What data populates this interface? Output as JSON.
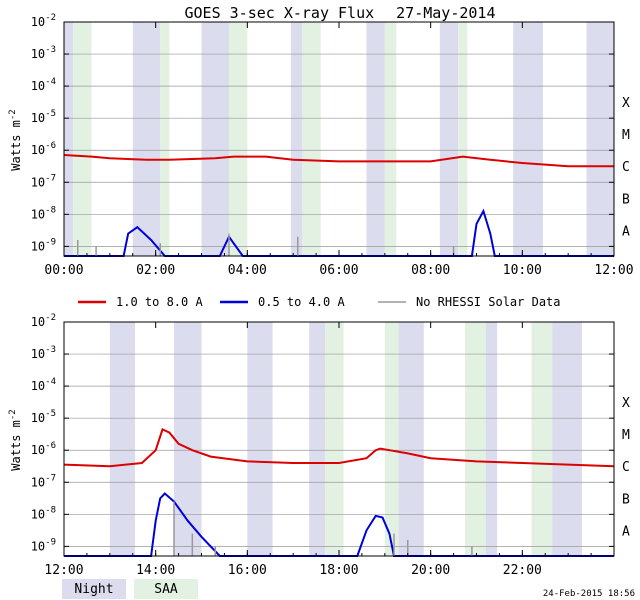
{
  "title": "GOES 3-sec X-ray Flux",
  "date": "27-May-2014",
  "ylabel": "Watts m",
  "ylabel_exp": "-2",
  "y_ticks": [
    {
      "base": "10",
      "exp": "-2"
    },
    {
      "base": "10",
      "exp": "-3"
    },
    {
      "base": "10",
      "exp": "-4"
    },
    {
      "base": "10",
      "exp": "-5"
    },
    {
      "base": "10",
      "exp": "-6"
    },
    {
      "base": "10",
      "exp": "-7"
    },
    {
      "base": "10",
      "exp": "-8"
    },
    {
      "base": "10",
      "exp": "-9"
    }
  ],
  "classes": [
    "X",
    "M",
    "C",
    "B",
    "A"
  ],
  "legend": {
    "long": "1.0 to 8.0 A",
    "short": "0.5 to 4.0 A",
    "norhessi": "No RHESSI Solar Data"
  },
  "key": {
    "night": "Night",
    "saa": "SAA"
  },
  "timestamp": "24-Feb-2015 18:56",
  "colors": {
    "long": "#dd0000",
    "short": "#0000dd",
    "norhessi": "#999999",
    "night": "#dcdcef",
    "saa": "#e3f1e3",
    "grid": "#999999"
  },
  "chart_data": [
    {
      "type": "line",
      "panel": "top",
      "x_range_hours": [
        0,
        12
      ],
      "x_tick_labels": [
        "00:00",
        "02:00",
        "04:00",
        "06:00",
        "08:00",
        "10:00",
        "12:00"
      ],
      "ylim_log10": [
        -9.3,
        -2
      ],
      "night": [
        [
          0.0,
          0.2
        ],
        [
          1.5,
          2.1
        ],
        [
          3.0,
          3.6
        ],
        [
          4.95,
          5.2
        ],
        [
          6.6,
          7.0
        ],
        [
          8.2,
          8.6
        ],
        [
          9.8,
          10.45
        ],
        [
          11.4,
          12.0
        ]
      ],
      "saa": [
        [
          0.2,
          0.6
        ],
        [
          2.1,
          2.3
        ],
        [
          3.6,
          4.0
        ],
        [
          5.2,
          5.6
        ],
        [
          7.0,
          7.25
        ],
        [
          8.6,
          8.8
        ]
      ],
      "series": [
        {
          "name": "1.0 to 8.0 A",
          "values_log10": [
            [
              0,
              -6.15
            ],
            [
              0.6,
              -6.2
            ],
            [
              1.0,
              -6.25
            ],
            [
              1.8,
              -6.3
            ],
            [
              2.3,
              -6.3
            ],
            [
              3.3,
              -6.25
            ],
            [
              3.7,
              -6.2
            ],
            [
              4.4,
              -6.2
            ],
            [
              5.0,
              -6.3
            ],
            [
              6.0,
              -6.35
            ],
            [
              7.0,
              -6.35
            ],
            [
              8.0,
              -6.35
            ],
            [
              8.7,
              -6.2
            ],
            [
              9.3,
              -6.3
            ],
            [
              10.0,
              -6.4
            ],
            [
              11.0,
              -6.5
            ],
            [
              12.0,
              -6.5
            ]
          ]
        },
        {
          "name": "0.5 to 4.0 A",
          "values_log10": [
            [
              0.0,
              -9.3
            ],
            [
              1.3,
              -9.3
            ],
            [
              1.4,
              -8.6
            ],
            [
              1.6,
              -8.4
            ],
            [
              1.9,
              -8.8
            ],
            [
              2.2,
              -9.3
            ],
            [
              3.4,
              -9.3
            ],
            [
              3.6,
              -8.7
            ],
            [
              3.9,
              -9.3
            ],
            [
              8.9,
              -9.3
            ],
            [
              9.0,
              -8.3
            ],
            [
              9.15,
              -7.9
            ],
            [
              9.3,
              -8.6
            ],
            [
              9.4,
              -9.3
            ],
            [
              12.0,
              -9.3
            ]
          ]
        },
        {
          "name": "No RHESSI Solar Data",
          "values_log10": [
            [
              0.3,
              -8.8
            ],
            [
              0.7,
              -9.0
            ],
            [
              2.1,
              -8.9
            ],
            [
              3.6,
              -8.6
            ],
            [
              5.1,
              -8.7
            ],
            [
              8.5,
              -9.0
            ]
          ]
        }
      ]
    },
    {
      "type": "line",
      "panel": "bottom",
      "x_range_hours": [
        12,
        24
      ],
      "x_tick_labels": [
        "12:00",
        "14:00",
        "16:00",
        "18:00",
        "20:00",
        "22:00"
      ],
      "ylim_log10": [
        -9.3,
        -2
      ],
      "night": [
        [
          13.0,
          13.55
        ],
        [
          14.4,
          15.0
        ],
        [
          16.0,
          16.55
        ],
        [
          17.35,
          17.7
        ],
        [
          19.3,
          19.85
        ],
        [
          21.2,
          21.45
        ],
        [
          22.65,
          23.3
        ]
      ],
      "saa": [
        [
          17.7,
          18.1
        ],
        [
          19.0,
          19.3
        ],
        [
          20.75,
          21.2
        ],
        [
          22.2,
          22.65
        ]
      ],
      "series": [
        {
          "name": "1.0 to 8.0 A",
          "values_log10": [
            [
              12.0,
              -6.45
            ],
            [
              13.0,
              -6.5
            ],
            [
              13.7,
              -6.4
            ],
            [
              14.0,
              -6.0
            ],
            [
              14.15,
              -5.35
            ],
            [
              14.3,
              -5.45
            ],
            [
              14.5,
              -5.8
            ],
            [
              14.8,
              -6.0
            ],
            [
              15.2,
              -6.2
            ],
            [
              16.0,
              -6.35
            ],
            [
              17.0,
              -6.4
            ],
            [
              18.0,
              -6.4
            ],
            [
              18.6,
              -6.25
            ],
            [
              18.8,
              -6.0
            ],
            [
              18.9,
              -5.95
            ],
            [
              19.1,
              -6.0
            ],
            [
              19.5,
              -6.1
            ],
            [
              20.0,
              -6.25
            ],
            [
              21.0,
              -6.35
            ],
            [
              22.0,
              -6.4
            ],
            [
              23.0,
              -6.45
            ],
            [
              24.0,
              -6.5
            ]
          ]
        },
        {
          "name": "0.5 to 4.0 A",
          "values_log10": [
            [
              12.0,
              -9.3
            ],
            [
              13.9,
              -9.3
            ],
            [
              14.0,
              -8.2
            ],
            [
              14.1,
              -7.5
            ],
            [
              14.2,
              -7.35
            ],
            [
              14.4,
              -7.6
            ],
            [
              14.7,
              -8.2
            ],
            [
              15.0,
              -8.7
            ],
            [
              15.4,
              -9.3
            ],
            [
              18.4,
              -9.3
            ],
            [
              18.6,
              -8.5
            ],
            [
              18.8,
              -8.05
            ],
            [
              18.95,
              -8.1
            ],
            [
              19.1,
              -8.6
            ],
            [
              19.2,
              -9.3
            ],
            [
              24.0,
              -9.3
            ]
          ]
        },
        {
          "name": "No RHESSI Solar Data",
          "values_log10": [
            [
              14.4,
              -7.6
            ],
            [
              14.8,
              -8.6
            ],
            [
              15.3,
              -9.0
            ],
            [
              19.2,
              -8.6
            ],
            [
              19.5,
              -8.8
            ],
            [
              20.9,
              -9.0
            ]
          ]
        }
      ]
    }
  ]
}
